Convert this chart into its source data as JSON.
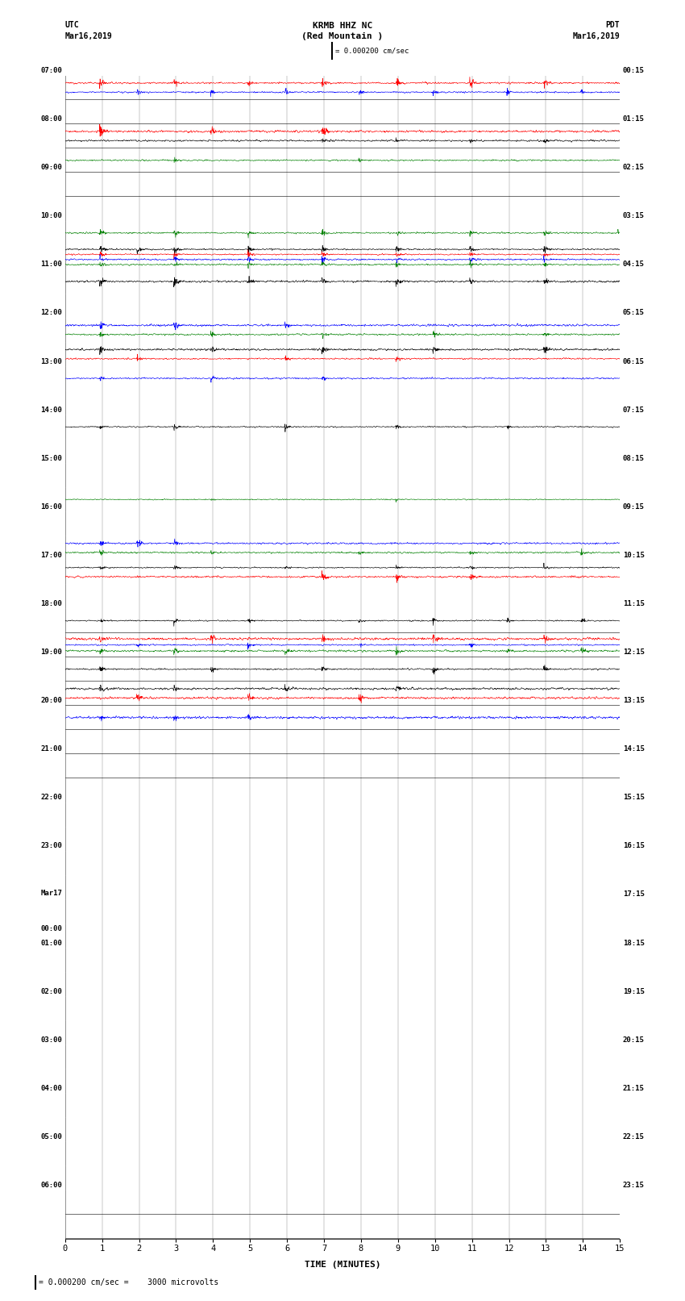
{
  "title_line1": "KRMB HHZ NC",
  "title_line2": "(Red Mountain )",
  "scale_text": "| = 0.000200 cm/sec",
  "left_header_line1": "UTC",
  "left_header_line2": "Mar16,2019",
  "right_header_line1": "PDT",
  "right_header_line2": "Mar16,2019",
  "bottom_label": "TIME (MINUTES)",
  "bottom_note": "| = 0.000200 cm/sec =    3000 microvolts",
  "xlim": [
    0,
    15
  ],
  "fig_width": 8.5,
  "fig_height": 16.13,
  "dpi": 100,
  "bg_color": "#ffffff",
  "utc_labels": [
    "07:00",
    "",
    "08:00",
    "",
    "09:00",
    "",
    "10:00",
    "",
    "11:00",
    "",
    "12:00",
    "",
    "13:00",
    "",
    "14:00",
    "",
    "15:00",
    "",
    "16:00",
    "",
    "17:00",
    "",
    "18:00",
    "",
    "19:00",
    "",
    "20:00",
    "",
    "21:00",
    "",
    "22:00",
    "",
    "23:00",
    "",
    "Mar17\n00:00",
    "",
    "01:00",
    "",
    "02:00",
    "",
    "03:00",
    "",
    "04:00",
    "",
    "05:00",
    "",
    "06:00",
    ""
  ],
  "pdt_labels": [
    "00:15",
    "",
    "01:15",
    "",
    "02:15",
    "",
    "03:15",
    "",
    "04:15",
    "",
    "05:15",
    "",
    "06:15",
    "",
    "07:15",
    "",
    "08:15",
    "",
    "09:15",
    "",
    "10:15",
    "",
    "11:15",
    "",
    "12:15",
    "",
    "13:15",
    "",
    "14:15",
    "",
    "15:15",
    "",
    "16:15",
    "",
    "17:15",
    "",
    "18:15",
    "",
    "19:15",
    "",
    "20:15",
    "",
    "21:15",
    "",
    "22:15",
    "",
    "23:15",
    ""
  ],
  "num_rows": 48,
  "row_activities": [
    [
      [
        "red",
        1.2,
        true,
        [
          1,
          3,
          5,
          7,
          9,
          11,
          13
        ]
      ],
      [
        "blue",
        0.9,
        true,
        [
          2,
          4,
          6,
          8,
          10,
          12,
          14
        ]
      ]
    ],
    [],
    [
      [
        "red",
        1.5,
        true,
        [
          1,
          4,
          7
        ]
      ],
      [
        "black",
        0.6,
        true,
        [
          7,
          9,
          11,
          13
        ]
      ]
    ],
    [
      [
        "green",
        0.6,
        true,
        [
          3,
          8
        ]
      ]
    ],
    [],
    [],
    [
      [
        "green",
        1.0,
        true,
        [
          1,
          3,
          5,
          7,
          9,
          11,
          13,
          15
        ]
      ]
    ],
    [
      [
        "black",
        1.3,
        true,
        [
          1,
          2,
          3,
          5,
          7,
          9,
          11,
          13
        ]
      ],
      [
        "red",
        1.1,
        true,
        [
          1,
          3,
          5,
          7,
          9,
          11,
          13
        ]
      ],
      [
        "blue",
        1.0,
        true,
        [
          1,
          3,
          5,
          7,
          9,
          11,
          13
        ]
      ],
      [
        "green",
        0.9,
        true,
        [
          1,
          3,
          5,
          7,
          9,
          11,
          13
        ]
      ]
    ],
    [
      [
        "black",
        1.1,
        true,
        [
          1,
          3,
          5,
          7,
          9,
          11,
          13
        ]
      ]
    ],
    [],
    [
      [
        "blue",
        0.9,
        true,
        [
          1,
          3,
          6
        ]
      ],
      [
        "green",
        0.8,
        true,
        [
          1,
          4,
          7,
          10,
          13
        ]
      ]
    ],
    [
      [
        "black",
        1.0,
        true,
        [
          1,
          4,
          7,
          10,
          13
        ]
      ],
      [
        "red",
        0.9,
        true,
        [
          2,
          6,
          9
        ]
      ]
    ],
    [
      [
        "blue",
        0.8,
        true,
        [
          1,
          4,
          7
        ]
      ]
    ],
    [],
    [
      [
        "black",
        1.0,
        true,
        [
          1,
          3,
          6,
          9,
          12
        ]
      ]
    ],
    [],
    [],
    [
      [
        "green",
        0.5,
        true,
        [
          4,
          9
        ]
      ]
    ],
    [],
    [
      [
        "blue",
        0.9,
        true,
        [
          1,
          2,
          3
        ]
      ],
      [
        "green",
        0.8,
        true,
        [
          1,
          4,
          8,
          11,
          14
        ]
      ]
    ],
    [
      [
        "black",
        0.9,
        true,
        [
          1,
          3,
          6,
          9,
          11,
          13
        ]
      ],
      [
        "red",
        1.2,
        true,
        [
          7,
          9,
          11
        ]
      ]
    ],
    [],
    [
      [
        "black",
        1.1,
        true,
        [
          1,
          3,
          5,
          8,
          10,
          12,
          14
        ]
      ]
    ],
    [
      [
        "red",
        1.0,
        true,
        [
          1,
          4,
          7,
          10,
          13
        ]
      ],
      [
        "blue",
        0.9,
        true,
        [
          2,
          5,
          8,
          11
        ]
      ],
      [
        "green",
        0.9,
        true,
        [
          1,
          3,
          6,
          9,
          12,
          14
        ]
      ]
    ],
    [
      [
        "black",
        1.0,
        true,
        [
          1,
          4,
          7,
          10,
          13
        ]
      ]
    ],
    [
      [
        "black",
        0.9,
        true,
        [
          1,
          3,
          6,
          9
        ]
      ],
      [
        "red",
        1.0,
        true,
        [
          2,
          5,
          8
        ]
      ]
    ],
    [
      [
        "blue",
        0.7,
        true,
        [
          1,
          3,
          5
        ]
      ]
    ],
    [],
    [],
    [],
    [],
    [],
    [],
    [],
    [],
    [],
    [],
    [],
    [],
    [],
    [],
    [],
    [],
    [],
    [],
    [],
    [],
    [],
    []
  ]
}
